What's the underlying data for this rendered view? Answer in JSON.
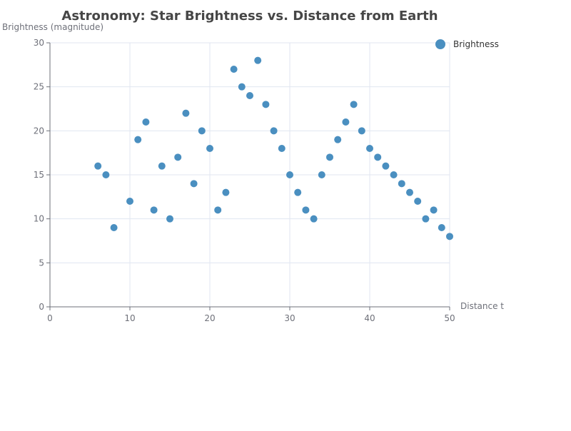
{
  "chart_data": {
    "type": "scatter",
    "title": "Astronomy: Star Brightness vs. Distance from Earth",
    "ylabel": "Brightness (magnitude)",
    "xlabel": "Distance t",
    "xlim": [
      0,
      50
    ],
    "ylim": [
      0,
      30
    ],
    "x_ticks": [
      0,
      10,
      20,
      30,
      40,
      50
    ],
    "y_ticks": [
      0,
      5,
      10,
      15,
      20,
      25,
      30
    ],
    "grid": true,
    "legend_position": "top-right",
    "color": "#4a8fc0",
    "series": [
      {
        "name": "Brightness",
        "points": [
          [
            6,
            16
          ],
          [
            7,
            15
          ],
          [
            8,
            9
          ],
          [
            10,
            12
          ],
          [
            11,
            19
          ],
          [
            12,
            21
          ],
          [
            13,
            11
          ],
          [
            14,
            16
          ],
          [
            15,
            10
          ],
          [
            16,
            17
          ],
          [
            17,
            22
          ],
          [
            18,
            14
          ],
          [
            19,
            20
          ],
          [
            20,
            18
          ],
          [
            21,
            11
          ],
          [
            22,
            13
          ],
          [
            23,
            27
          ],
          [
            24,
            25
          ],
          [
            25,
            24
          ],
          [
            26,
            28
          ],
          [
            27,
            23
          ],
          [
            28,
            20
          ],
          [
            29,
            18
          ],
          [
            30,
            15
          ],
          [
            31,
            13
          ],
          [
            32,
            11
          ],
          [
            33,
            10
          ],
          [
            34,
            15
          ],
          [
            35,
            17
          ],
          [
            36,
            19
          ],
          [
            37,
            21
          ],
          [
            38,
            23
          ],
          [
            39,
            20
          ],
          [
            40,
            18
          ],
          [
            41,
            17
          ],
          [
            42,
            16
          ],
          [
            43,
            15
          ],
          [
            44,
            14
          ],
          [
            45,
            13
          ],
          [
            46,
            12
          ],
          [
            47,
            10
          ],
          [
            48,
            11
          ],
          [
            49,
            9
          ],
          [
            50,
            8
          ]
        ]
      }
    ]
  }
}
